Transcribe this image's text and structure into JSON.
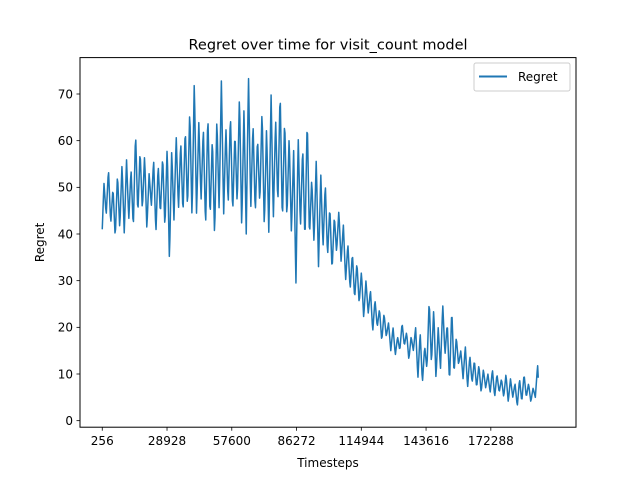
{
  "chart_data": {
    "type": "line",
    "title": "Regret over time for visit_count model",
    "xlabel": "Timesteps",
    "ylabel": "Regret",
    "x_ticks": [
      256,
      28928,
      57600,
      86272,
      114944,
      143616,
      172288
    ],
    "x_tick_labels": [
      "256",
      "28928",
      "57600",
      "86272",
      "114944",
      "143616",
      "172288"
    ],
    "y_ticks": [
      0,
      10,
      20,
      30,
      40,
      50,
      60,
      70
    ],
    "y_tick_labels": [
      "0",
      "10",
      "20",
      "30",
      "40",
      "50",
      "60",
      "70"
    ],
    "xlim": [
      -9600,
      210000
    ],
    "ylim": [
      -1.4,
      77.8
    ],
    "grid": false,
    "legend_position": "top-right",
    "series": [
      {
        "name": "Regret",
        "color": "#1f77b4",
        "x_start": 256,
        "x_step": 256,
        "anchors": [
          [
            256,
            41
          ],
          [
            1000,
            51
          ],
          [
            2000,
            44
          ],
          [
            3000,
            54
          ],
          [
            4000,
            42
          ],
          [
            5000,
            50
          ],
          [
            6000,
            39
          ],
          [
            7000,
            53
          ],
          [
            8000,
            41
          ],
          [
            9000,
            55
          ],
          [
            10000,
            40
          ],
          [
            11000,
            56
          ],
          [
            12000,
            43
          ],
          [
            13000,
            54
          ],
          [
            14000,
            41
          ],
          [
            15000,
            62
          ],
          [
            16000,
            44
          ],
          [
            17000,
            58
          ],
          [
            18000,
            45
          ],
          [
            19000,
            57
          ],
          [
            20000,
            41
          ],
          [
            21000,
            53
          ],
          [
            22000,
            46
          ],
          [
            23000,
            56
          ],
          [
            24000,
            40
          ],
          [
            25000,
            55
          ],
          [
            26000,
            44
          ],
          [
            27000,
            57
          ],
          [
            28000,
            41
          ],
          [
            29000,
            59
          ],
          [
            30000,
            34
          ],
          [
            31000,
            58
          ],
          [
            32000,
            43
          ],
          [
            33000,
            61
          ],
          [
            34000,
            45
          ],
          [
            35000,
            60
          ],
          [
            36000,
            44
          ],
          [
            37000,
            63
          ],
          [
            38000,
            45
          ],
          [
            39000,
            67
          ],
          [
            40000,
            43
          ],
          [
            41000,
            73
          ],
          [
            42000,
            44
          ],
          [
            43000,
            64
          ],
          [
            44000,
            47
          ],
          [
            45000,
            63
          ],
          [
            46000,
            41
          ],
          [
            47000,
            66
          ],
          [
            48000,
            43
          ],
          [
            49000,
            61
          ],
          [
            50000,
            39
          ],
          [
            51000,
            65
          ],
          [
            52000,
            45
          ],
          [
            53000,
            73
          ],
          [
            54000,
            44
          ],
          [
            55000,
            63
          ],
          [
            56000,
            46
          ],
          [
            57000,
            66
          ],
          [
            58000,
            44
          ],
          [
            59000,
            62
          ],
          [
            60000,
            46
          ],
          [
            61000,
            70
          ],
          [
            62000,
            41
          ],
          [
            63000,
            67
          ],
          [
            64000,
            40
          ],
          [
            65000,
            74
          ],
          [
            66000,
            45
          ],
          [
            67000,
            64
          ],
          [
            68000,
            44
          ],
          [
            69000,
            61
          ],
          [
            70000,
            46
          ],
          [
            71000,
            67
          ],
          [
            72000,
            41
          ],
          [
            73000,
            63
          ],
          [
            74000,
            40
          ],
          [
            75000,
            70
          ],
          [
            76000,
            43
          ],
          [
            77000,
            65
          ],
          [
            78000,
            46
          ],
          [
            79000,
            71
          ],
          [
            80000,
            42
          ],
          [
            81000,
            65
          ],
          [
            82000,
            43
          ],
          [
            83000,
            61
          ],
          [
            84000,
            40
          ],
          [
            85000,
            58
          ],
          [
            86000,
            29
          ],
          [
            87000,
            61
          ],
          [
            88000,
            41
          ],
          [
            89000,
            59
          ],
          [
            90000,
            38
          ],
          [
            91000,
            65
          ],
          [
            92000,
            39
          ],
          [
            93000,
            52
          ],
          [
            94000,
            38
          ],
          [
            95000,
            56
          ],
          [
            96000,
            33
          ],
          [
            97000,
            53
          ],
          [
            98000,
            37
          ],
          [
            99000,
            51
          ],
          [
            100000,
            35
          ],
          [
            101000,
            46
          ],
          [
            102000,
            32
          ],
          [
            103000,
            44
          ],
          [
            104000,
            36
          ],
          [
            105000,
            45
          ],
          [
            106000,
            34
          ],
          [
            107000,
            42
          ],
          [
            108000,
            30
          ],
          [
            109000,
            38
          ],
          [
            110000,
            28
          ],
          [
            111000,
            36
          ],
          [
            112000,
            26
          ],
          [
            113000,
            34
          ],
          [
            114000,
            25
          ],
          [
            115000,
            32
          ],
          [
            116000,
            22
          ],
          [
            117000,
            30
          ],
          [
            118000,
            23
          ],
          [
            119000,
            28
          ],
          [
            120000,
            19
          ],
          [
            121000,
            26
          ],
          [
            122000,
            20
          ],
          [
            123000,
            24
          ],
          [
            124000,
            17
          ],
          [
            125000,
            23
          ],
          [
            126000,
            18
          ],
          [
            127000,
            21
          ],
          [
            128000,
            15
          ],
          [
            129000,
            20
          ],
          [
            130000,
            14
          ],
          [
            131000,
            18
          ],
          [
            132000,
            15
          ],
          [
            133000,
            21
          ],
          [
            134000,
            16
          ],
          [
            135000,
            19
          ],
          [
            136000,
            13
          ],
          [
            137000,
            18
          ],
          [
            138000,
            15
          ],
          [
            139000,
            20
          ],
          [
            140000,
            9
          ],
          [
            141000,
            19
          ],
          [
            142000,
            8
          ],
          [
            143000,
            16
          ],
          [
            144000,
            11
          ],
          [
            145000,
            26
          ],
          [
            146000,
            12
          ],
          [
            147000,
            24
          ],
          [
            148000,
            9
          ],
          [
            149000,
            20
          ],
          [
            150000,
            11
          ],
          [
            151000,
            25
          ],
          [
            152000,
            14
          ],
          [
            153000,
            21
          ],
          [
            154000,
            8
          ],
          [
            155000,
            24
          ],
          [
            156000,
            10
          ],
          [
            157000,
            18
          ],
          [
            158000,
            12
          ],
          [
            159000,
            15
          ],
          [
            160000,
            9
          ],
          [
            161000,
            16
          ],
          [
            162000,
            7
          ],
          [
            163000,
            14
          ],
          [
            164000,
            8
          ],
          [
            165000,
            13
          ],
          [
            166000,
            7
          ],
          [
            167000,
            12
          ],
          [
            168000,
            6
          ],
          [
            169000,
            11
          ],
          [
            170000,
            7
          ],
          [
            171000,
            10
          ],
          [
            172000,
            6
          ],
          [
            173000,
            11
          ],
          [
            174000,
            5
          ],
          [
            175000,
            10
          ],
          [
            176000,
            6
          ],
          [
            177000,
            9
          ],
          [
            178000,
            5
          ],
          [
            179000,
            10
          ],
          [
            180000,
            4
          ],
          [
            181000,
            9
          ],
          [
            182000,
            5
          ],
          [
            183000,
            8
          ],
          [
            184000,
            3
          ],
          [
            185000,
            9
          ],
          [
            186000,
            4
          ],
          [
            187000,
            10
          ],
          [
            188000,
            5
          ],
          [
            189000,
            8
          ],
          [
            190000,
            4
          ],
          [
            191000,
            7
          ],
          [
            192000,
            5
          ],
          [
            193000,
            12
          ],
          [
            193500,
            7
          ]
        ]
      }
    ]
  }
}
